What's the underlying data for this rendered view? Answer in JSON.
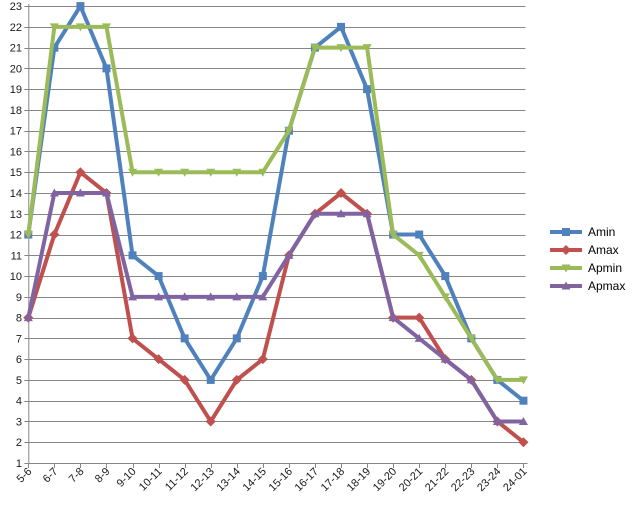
{
  "chart_data": {
    "type": "line",
    "title": "",
    "xlabel": "",
    "ylabel": "",
    "ylim": [
      1,
      23
    ],
    "y_ticks": [
      1,
      2,
      3,
      4,
      5,
      6,
      7,
      8,
      9,
      10,
      11,
      12,
      13,
      14,
      15,
      16,
      17,
      18,
      19,
      20,
      21,
      22,
      23
    ],
    "categories": [
      "5-6",
      "6-7",
      "7-8",
      "8-9",
      "9-10",
      "10-11",
      "11-12",
      "12-13",
      "13-14",
      "14-15",
      "15-16",
      "16-17",
      "17-18",
      "18-19",
      "19-20",
      "20-21",
      "21-22",
      "22-23",
      "23-24",
      "24-01"
    ],
    "series": [
      {
        "name": "Amin",
        "color": "#4F81BD",
        "marker": "square",
        "values": [
          12,
          21,
          23,
          20,
          11,
          10,
          7,
          5,
          7,
          10,
          17,
          21,
          22,
          19,
          12,
          12,
          10,
          7,
          5,
          4
        ]
      },
      {
        "name": "Amax",
        "color": "#C0504D",
        "marker": "diamond",
        "values": [
          8,
          12,
          15,
          14,
          7,
          6,
          5,
          3,
          5,
          6,
          11,
          13,
          14,
          13,
          8,
          8,
          6,
          5,
          3,
          2
        ]
      },
      {
        "name": "Apmin",
        "color": "#9BBB59",
        "marker": "triangle-down",
        "values": [
          12,
          22,
          22,
          22,
          15,
          15,
          15,
          15,
          15,
          15,
          17,
          21,
          21,
          21,
          12,
          11,
          9,
          7,
          5,
          5
        ]
      },
      {
        "name": "Apmax",
        "color": "#8064A2",
        "marker": "triangle-up",
        "values": [
          8,
          14,
          14,
          14,
          9,
          9,
          9,
          9,
          9,
          9,
          11,
          13,
          13,
          13,
          8,
          7,
          6,
          5,
          3,
          3
        ]
      }
    ],
    "grid": true,
    "legend_position": "right",
    "gridline_color": "#878787",
    "axis_color": "#878787",
    "label_color": "#1a1a1a",
    "background": "#FFFFFF"
  }
}
